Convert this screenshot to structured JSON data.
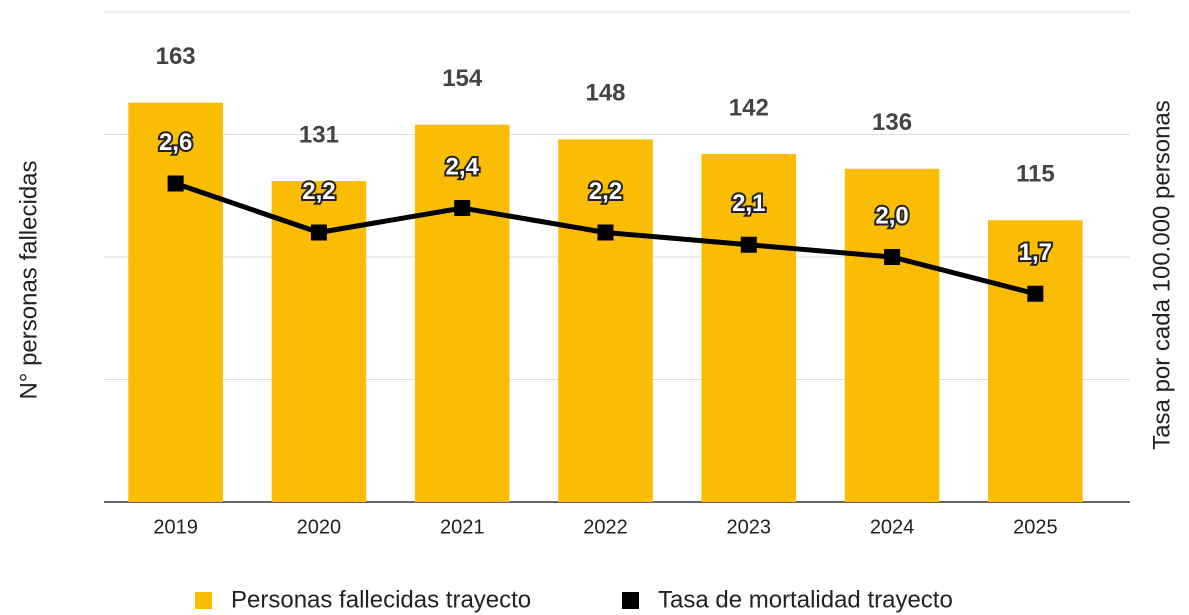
{
  "chart_data": {
    "type": "bar",
    "categories": [
      "2019",
      "2020",
      "2021",
      "2022",
      "2023",
      "2024",
      "2025"
    ],
    "y_label": "N° personas fallecidas",
    "y2_label": "Tasa por cada 100.000 personas",
    "ylim": [
      0,
      200
    ],
    "yticks": [
      0,
      50,
      100,
      150,
      200
    ],
    "y2lim": [
      0,
      4
    ],
    "grid": true,
    "legend": "bottom",
    "series": [
      {
        "name": "Personas fallecidas trayecto",
        "type": "bar",
        "color": "#fbbc04",
        "values": [
          163,
          131,
          154,
          148,
          142,
          136,
          115
        ]
      },
      {
        "name": "Tasa de mortalidad trayecto",
        "type": "line",
        "axis": "y2",
        "color": "#000000",
        "values": [
          2.6,
          2.2,
          2.4,
          2.2,
          2.1,
          2.0,
          1.7
        ],
        "value_labels": [
          "2,6",
          "2,2",
          "2,4",
          "2,2",
          "2,1",
          "2,0",
          "1,7"
        ]
      }
    ]
  }
}
